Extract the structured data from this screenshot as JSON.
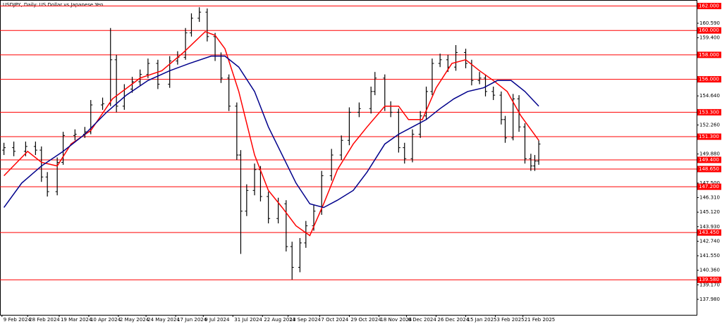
{
  "chart_data": {
    "type": "ohlc",
    "title": "USDJPY, Daily: US Dollar vs Japanese Yen",
    "color": "#000000",
    "x": [
      1,
      6,
      12,
      17,
      20,
      23,
      28,
      31,
      37,
      42,
      45,
      51,
      55,
      58,
      62,
      66,
      70,
      74,
      79,
      85,
      89,
      93,
      96,
      100,
      104,
      108,
      111,
      115,
      119,
      121,
      124,
      128,
      131,
      135,
      140,
      144,
      147,
      151,
      154,
      158,
      162,
      167,
      172,
      176,
      181,
      187,
      189,
      194,
      197,
      201,
      204,
      208,
      212,
      215,
      218,
      222,
      226,
      230,
      235,
      238,
      242,
      245,
      249,
      253,
      255,
      259,
      262,
      265,
      268,
      270,
      272
    ],
    "open": [
      150.2,
      150.4,
      150.1,
      150.5,
      150.2,
      148.0,
      146.8,
      149.2,
      151.4,
      151.5,
      151.7,
      153.9,
      154.0,
      157.6,
      153.8,
      155.2,
      155.8,
      156.4,
      157.3,
      155.6,
      157.5,
      157.8,
      159.8,
      161.0,
      161.5,
      159.5,
      157.9,
      156.1,
      153.8,
      149.8,
      145.2,
      146.9,
      148.6,
      146.4,
      144.6,
      145.8,
      142.3,
      140.6,
      142.6,
      144.0,
      145.2,
      148.1,
      149.8,
      151.0,
      153.3,
      153.6,
      155.0,
      156.1,
      153.8,
      153.3,
      150.4,
      149.5,
      151.5,
      153.0,
      155.0,
      157.3,
      157.6,
      157.0,
      158.2,
      157.3,
      155.9,
      156.1,
      155.0,
      154.7,
      152.7,
      151.2,
      154.4,
      152.1,
      149.5,
      148.9,
      149.3
    ],
    "high": [
      150.8,
      150.9,
      150.9,
      150.9,
      150.5,
      148.4,
      149.6,
      151.7,
      151.9,
      152.1,
      154.3,
      154.5,
      160.2,
      158.0,
      155.6,
      156.2,
      156.8,
      157.7,
      157.6,
      157.9,
      158.3,
      160.2,
      161.4,
      161.9,
      161.8,
      159.8,
      158.2,
      156.4,
      154.1,
      150.2,
      147.4,
      149.1,
      148.9,
      146.8,
      146.3,
      146.1,
      142.7,
      143.0,
      144.4,
      145.7,
      148.5,
      150.3,
      151.4,
      153.7,
      154.1,
      155.4,
      156.6,
      156.4,
      154.2,
      153.6,
      150.8,
      151.9,
      153.4,
      155.4,
      157.7,
      158.1,
      158.0,
      158.8,
      158.5,
      157.6,
      156.6,
      156.4,
      155.4,
      155.0,
      153.0,
      154.8,
      154.7,
      152.4,
      149.9,
      149.8,
      151.0
    ],
    "low": [
      149.8,
      149.7,
      149.7,
      149.8,
      147.6,
      146.4,
      146.5,
      149.0,
      151.0,
      151.2,
      151.5,
      153.5,
      153.8,
      153.3,
      153.5,
      154.9,
      155.5,
      156.1,
      155.2,
      155.3,
      157.2,
      157.6,
      159.5,
      160.7,
      159.1,
      157.5,
      155.7,
      153.4,
      149.4,
      141.7,
      144.8,
      146.5,
      146.0,
      144.2,
      144.2,
      141.9,
      139.6,
      140.2,
      142.2,
      143.6,
      144.9,
      147.7,
      149.4,
      150.6,
      152.9,
      153.2,
      154.7,
      153.4,
      152.9,
      150.0,
      149.1,
      149.2,
      151.2,
      152.7,
      154.7,
      157.0,
      156.6,
      156.7,
      156.9,
      155.5,
      155.6,
      154.6,
      154.3,
      152.3,
      150.8,
      151.0,
      151.7,
      149.1,
      148.5,
      148.5,
      149.0
    ],
    "close": [
      150.4,
      150.1,
      150.5,
      150.2,
      148.0,
      146.8,
      149.2,
      151.4,
      151.5,
      151.7,
      153.9,
      154.0,
      157.6,
      153.8,
      155.2,
      155.8,
      156.4,
      157.3,
      155.6,
      157.5,
      157.8,
      159.8,
      161.0,
      161.5,
      159.5,
      157.9,
      156.1,
      153.8,
      149.8,
      145.2,
      146.9,
      148.6,
      146.4,
      144.6,
      145.8,
      142.3,
      140.6,
      142.6,
      144.0,
      145.2,
      148.1,
      149.8,
      151.0,
      153.3,
      153.6,
      155.0,
      156.1,
      153.8,
      153.3,
      150.4,
      149.5,
      151.5,
      153.0,
      155.0,
      157.3,
      157.6,
      157.0,
      158.2,
      157.3,
      155.9,
      156.1,
      155.0,
      154.7,
      152.7,
      151.2,
      154.4,
      152.1,
      149.5,
      148.9,
      149.3,
      150.7
    ],
    "lines": [
      {
        "color": "#ff0000",
        "x": [
          1,
          13,
          20,
          28,
          35,
          45,
          56,
          70,
          81,
          92,
          103,
          108,
          113,
          120,
          128,
          135,
          142,
          149,
          156,
          163,
          170,
          178,
          185,
          194,
          201,
          206,
          213,
          220,
          228,
          235,
          242,
          249,
          256,
          263,
          272
        ],
        "values": [
          148.1,
          150.1,
          149.2,
          148.9,
          150.7,
          151.8,
          154.4,
          156.1,
          156.7,
          158.2,
          159.9,
          159.6,
          158.5,
          155.0,
          149.8,
          146.9,
          145.5,
          144.0,
          143.2,
          145.8,
          148.6,
          150.7,
          152.1,
          153.8,
          153.8,
          152.7,
          152.7,
          155.3,
          157.3,
          157.6,
          156.7,
          155.9,
          155.0,
          153.0,
          151.0
        ]
      },
      {
        "color": "#00008b",
        "x": [
          1,
          10,
          20,
          31,
          42,
          53,
          63,
          74,
          85,
          95,
          106,
          113,
          120,
          128,
          135,
          142,
          149,
          156,
          163,
          170,
          178,
          185,
          194,
          201,
          208,
          215,
          222,
          229,
          236,
          244,
          251,
          258,
          265,
          272
        ],
        "values": [
          145.5,
          147.5,
          148.9,
          150.1,
          151.5,
          153.3,
          154.7,
          155.9,
          156.7,
          157.3,
          157.9,
          157.9,
          157.0,
          155.0,
          152.1,
          149.8,
          147.5,
          145.8,
          145.5,
          146.1,
          146.9,
          148.4,
          150.7,
          151.5,
          152.1,
          152.7,
          153.6,
          154.4,
          155.0,
          155.3,
          155.9,
          155.9,
          155.0,
          153.8
        ]
      }
    ],
    "levels": [
      {
        "value": 162,
        "label": "162.000"
      },
      {
        "value": 160,
        "label": "160.000"
      },
      {
        "value": 158,
        "label": "158.000"
      },
      {
        "value": 156,
        "label": "156.000"
      },
      {
        "value": 153.3,
        "label": "153.300"
      },
      {
        "value": 151.3,
        "label": "151.300"
      },
      {
        "value": 149.4,
        "label": "149.400"
      },
      {
        "value": 148.65,
        "label": "148.650"
      },
      {
        "value": 147.2,
        "label": "147.200"
      },
      {
        "value": 143.45,
        "label": "143.450"
      },
      {
        "value": 139.58,
        "label": "139.580"
      }
    ],
    "level_color": "#ff0000",
    "ylim": [
      136.71,
      162.378
    ],
    "yticks": [
      {
        "value": 160.59,
        "label": "160.590"
      },
      {
        "value": 159.4,
        "label": "159.400"
      },
      {
        "value": 154.64,
        "label": "154.640"
      },
      {
        "value": 152.26,
        "label": "152.260"
      },
      {
        "value": 149.88,
        "label": "149.880"
      },
      {
        "value": 147.5,
        "label": "147.500"
      },
      {
        "value": 146.31,
        "label": "146.310"
      },
      {
        "value": 145.12,
        "label": "145.120"
      },
      {
        "value": 143.93,
        "label": "143.930"
      },
      {
        "value": 142.74,
        "label": "142.740"
      },
      {
        "value": 141.55,
        "label": "141.550"
      },
      {
        "value": 140.36,
        "label": "140.360"
      },
      {
        "value": 139.17,
        "label": "139.170"
      },
      {
        "value": 137.98,
        "label": "137.980"
      }
    ],
    "xlim": [
      -1,
      352
    ],
    "xticks": [
      {
        "value": 0,
        "label": "9 Feb 2024"
      },
      {
        "value": 13,
        "label": "28 Feb 2024"
      },
      {
        "value": 29,
        "label": "19 Mar 2024"
      },
      {
        "value": 44,
        "label": "10 Apr 2024"
      },
      {
        "value": 59,
        "label": "2 May 2024"
      },
      {
        "value": 73,
        "label": "24 May 2024"
      },
      {
        "value": 88,
        "label": "17 Jun 2024"
      },
      {
        "value": 102,
        "label": "9 Jul 2024"
      },
      {
        "value": 117,
        "label": "31 Jul 2024"
      },
      {
        "value": 132,
        "label": "22 Aug 2024"
      },
      {
        "value": 145,
        "label": "13 Sep 2024"
      },
      {
        "value": 161,
        "label": "7 Oct 2024"
      },
      {
        "value": 176,
        "label": "29 Oct 2024"
      },
      {
        "value": 191,
        "label": "18 Nov 2024"
      },
      {
        "value": 205,
        "label": "6 Dec 2024"
      },
      {
        "value": 220,
        "label": "26 Dec 2024"
      },
      {
        "value": 235,
        "label": "15 Jan 2025"
      },
      {
        "value": 250,
        "label": "3 Feb 2025"
      },
      {
        "value": 264,
        "label": "21 Feb 2025"
      }
    ]
  }
}
